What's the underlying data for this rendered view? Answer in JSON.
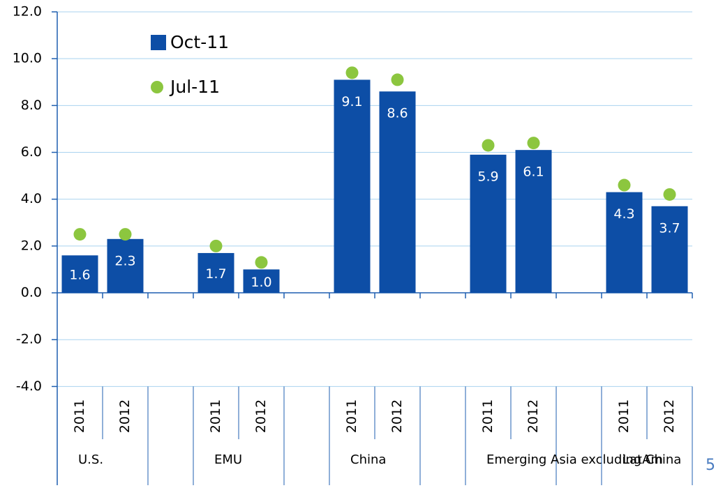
{
  "chart_data": {
    "type": "bar",
    "groups": [
      "U.S.",
      "EMU",
      "China",
      "Emerging Asia excluding China",
      "LatAm"
    ],
    "categories": [
      "2011",
      "2012",
      "2011",
      "2012",
      "2011",
      "2012",
      "2011",
      "2012",
      "2011",
      "2012"
    ],
    "series": [
      {
        "name": "Oct-11",
        "color": "#0d4ea6",
        "kind": "bar",
        "values": [
          1.6,
          2.3,
          1.7,
          1.0,
          9.1,
          8.6,
          5.9,
          6.1,
          4.3,
          3.7
        ],
        "value_labels": [
          "1.6",
          "2.3",
          "1.7",
          "1.0",
          "9.1",
          "8.6",
          "5.9",
          "6.1",
          "4.3",
          "3.7"
        ]
      },
      {
        "name": "Jul-11",
        "color": "#8cc63f",
        "kind": "dot",
        "values": [
          2.5,
          2.5,
          2.0,
          1.3,
          9.4,
          9.1,
          6.3,
          6.4,
          4.6,
          4.2
        ]
      }
    ],
    "ylim": [
      -4,
      12
    ],
    "yticks": [
      {
        "value": -4,
        "label": "-4.0"
      },
      {
        "value": -2,
        "label": "-2.0"
      },
      {
        "value": 0,
        "label": "0.0"
      },
      {
        "value": 2,
        "label": "2.0"
      },
      {
        "value": 4,
        "label": "4.0"
      },
      {
        "value": 6,
        "label": "6.0"
      },
      {
        "value": 8,
        "label": "8.0"
      },
      {
        "value": 10,
        "label": "10.0"
      },
      {
        "value": 12,
        "label": "12.0"
      }
    ],
    "grid": true
  },
  "page_number": "5"
}
